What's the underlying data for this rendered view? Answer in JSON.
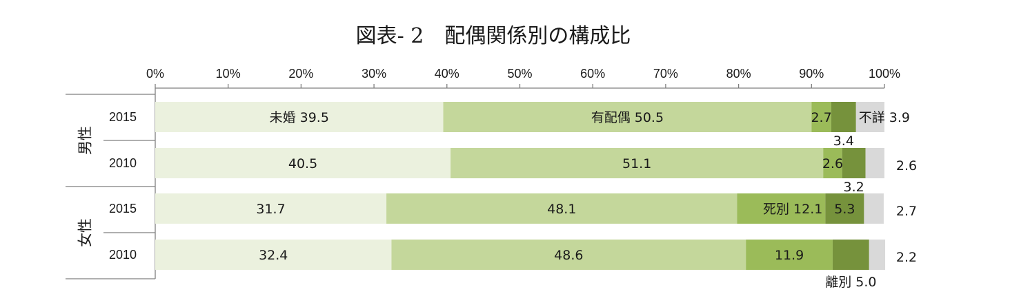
{
  "chart_data": {
    "type": "bar",
    "stacked": true,
    "orientation": "horizontal",
    "title": "図表- 2　配偶関係別の構成比",
    "xlim": [
      0,
      100
    ],
    "x_ticks": [
      "0%",
      "10%",
      "20%",
      "30%",
      "40%",
      "50%",
      "60%",
      "70%",
      "80%",
      "90%",
      "100%"
    ],
    "groups": [
      {
        "label": "男性",
        "rows": [
          0,
          1
        ]
      },
      {
        "label": "女性",
        "rows": [
          2,
          3
        ]
      }
    ],
    "categories": [
      "2015",
      "2010",
      "2015",
      "2010"
    ],
    "series": [
      {
        "key": "mikon",
        "values": [
          39.5,
          40.5,
          31.7,
          32.4
        ],
        "color": "#ebf1de"
      },
      {
        "key": "haiguu",
        "values": [
          50.5,
          51.1,
          48.1,
          48.6
        ],
        "color": "#c4d79b"
      },
      {
        "key": "shibetsu",
        "values": [
          2.7,
          2.6,
          12.1,
          11.9
        ],
        "color": "#9bbb59"
      },
      {
        "key": "ribetsu",
        "values": [
          3.4,
          3.2,
          5.3,
          5.0
        ],
        "color": "#76923c"
      },
      {
        "key": "fushou",
        "values": [
          3.9,
          2.6,
          2.7,
          2.2
        ],
        "color": "#d9d9d9"
      }
    ],
    "labels": [
      [
        "未婚 39.5",
        "有配偶 50.5",
        "2.7",
        "3.4",
        "不詳 3.9"
      ],
      [
        "40.5",
        "51.1",
        "2.6",
        "3.2",
        "2.6"
      ],
      [
        "31.7",
        "48.1",
        "死別 12.1",
        "5.3",
        "2.7"
      ],
      [
        "32.4",
        "48.6",
        "11.9",
        "離別 5.0",
        "2.2"
      ]
    ]
  }
}
